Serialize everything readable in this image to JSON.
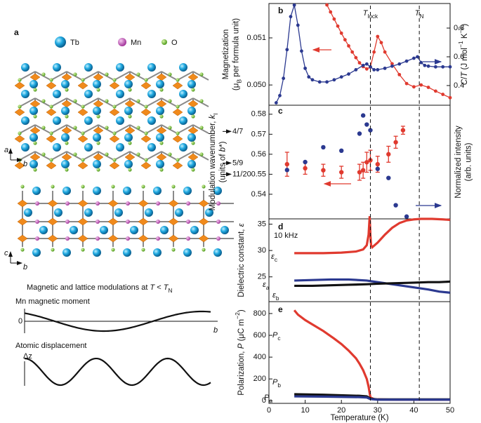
{
  "panel_a": {
    "label": "a",
    "legend": [
      "Tb",
      "Mn",
      "O"
    ],
    "axes": [
      "a",
      "b",
      "c",
      "b"
    ],
    "caption": [
      "Magnetic and lattice modulations at ",
      {
        "i": "T"
      },
      " < ",
      {
        "i": "T"
      },
      {
        "sub": "N"
      }
    ],
    "moment_label": "Mn magnetic moment",
    "zero": "0",
    "moment_axis": "b",
    "displacement_label": "Atomic displacement",
    "displacement_axis": "Δz"
  },
  "chart_data": [
    {
      "type": "line",
      "panel": "b",
      "xlim": [
        0,
        50
      ],
      "ylim": [
        0.04957,
        0.05173
      ],
      "yticks": [
        {
          "value": 0.05,
          "label": "0.050"
        },
        0.051
      ],
      "y2lim": [
        0.263,
        0.971
      ],
      "y2ticks": [
        0.4,
        0.6,
        0.8
      ],
      "ylabel": [
        [
          "Magnetization"
        ],
        [
          "(μ",
          {
            "sub": "B"
          },
          " per formula unit)"
        ]
      ],
      "y2label": [
        {
          "i": "C"
        },
        "/",
        {
          "i": "T"
        },
        " (J mol",
        {
          "sup": "−1"
        },
        " K",
        {
          "sup": "−2"
        },
        ")"
      ],
      "transitions": [
        {
          "value": 28,
          "label": [
            {
              "i": "T"
            },
            {
              "sub": "lock"
            }
          ]
        },
        {
          "value": 41.5,
          "label": [
            {
              "i": "T"
            },
            {
              "sub": "N"
            }
          ]
        }
      ],
      "series": [
        {
          "color": "#e03a2f",
          "markers": true,
          "x": [
            16,
            17,
            18,
            19,
            20,
            21,
            22,
            23,
            24,
            25,
            26,
            27,
            28,
            29,
            30,
            31,
            32,
            34,
            36,
            38,
            40,
            42,
            44,
            46,
            48,
            50
          ],
          "values": [
            0.0517,
            0.05155,
            0.0514,
            0.05125,
            0.0511,
            0.05096,
            0.05083,
            0.0507,
            0.05058,
            0.05047,
            0.05039,
            0.05034,
            0.05038,
            0.0507,
            0.05103,
            0.0509,
            0.0507,
            0.05045,
            0.05022,
            0.05003,
            0.04996,
            0.05,
            0.04995,
            0.04987,
            0.0498,
            0.04973
          ]
        },
        {
          "color": "#2b3990",
          "markers": true,
          "axis": "y2",
          "x": [
            2,
            3,
            4,
            5,
            6,
            7,
            8,
            9,
            10,
            11,
            12,
            14,
            16,
            18,
            20,
            22,
            24,
            26,
            27,
            28,
            29,
            30,
            32,
            34,
            36,
            38,
            40,
            41,
            42,
            43,
            44,
            46,
            48,
            50
          ],
          "values": [
            0.28,
            0.33,
            0.45,
            0.65,
            0.88,
            0.96,
            0.82,
            0.64,
            0.52,
            0.46,
            0.44,
            0.425,
            0.425,
            0.44,
            0.46,
            0.48,
            0.51,
            0.54,
            0.55,
            0.53,
            0.51,
            0.51,
            0.52,
            0.535,
            0.55,
            0.57,
            0.59,
            0.6,
            0.56,
            0.54,
            0.535,
            0.53,
            0.53,
            0.53
          ]
        }
      ]
    },
    {
      "type": "scatter",
      "panel": "c",
      "xlim": [
        0,
        50
      ],
      "ylim": [
        0.5277,
        0.5845
      ],
      "yticks": [
        0.54,
        0.55,
        0.56,
        0.57,
        0.58
      ],
      "y2lim": [
        0,
        1
      ],
      "ylabel": [
        [
          "Modulation wavenumber, ",
          {
            "i": "k"
          },
          {
            "sub": "l"
          }
        ],
        [
          "(units of ",
          {
            "i": "b"
          },
          "*)"
        ]
      ],
      "y2label": [
        [
          "Normalized intensity"
        ],
        [
          "(arb. units)"
        ]
      ],
      "fractions": [
        {
          "value": 0.5714,
          "label": "4/7"
        },
        {
          "value": 0.5556,
          "label": "5/9"
        },
        {
          "value": 0.55,
          "label": "11/20"
        }
      ],
      "series": [
        {
          "color": "#e03a2f",
          "x": [
            5,
            10,
            15,
            20,
            25,
            26,
            27,
            28,
            30,
            33,
            35,
            37
          ],
          "values": [
            0.555,
            0.553,
            0.552,
            0.551,
            0.551,
            0.552,
            0.556,
            0.557,
            0.555,
            0.56,
            0.566,
            0.572
          ],
          "errors": [
            0.006,
            0.003,
            0.003,
            0.003,
            0.004,
            0.004,
            0.005,
            0.005,
            0.004,
            0.004,
            0.003,
            0.002
          ]
        },
        {
          "color": "#2b3990",
          "axis": "y2",
          "x": [
            5,
            10,
            15,
            20,
            25,
            26,
            27,
            28,
            30,
            33,
            35,
            38
          ],
          "values": [
            0.43,
            0.5,
            0.63,
            0.6,
            0.75,
            0.91,
            0.83,
            0.78,
            0.44,
            0.36,
            0.12,
            0.02
          ]
        }
      ]
    },
    {
      "type": "line",
      "panel": "d",
      "xlim": [
        0,
        50
      ],
      "ylim": [
        20.3,
        36
      ],
      "yticks": [
        25,
        30,
        35
      ],
      "ylabel": [
        "Dielectric constant, ",
        {
          "i": "ε"
        }
      ],
      "labels": [
        {
          "text": [
            "10 kHz"
          ],
          "color": "#111111"
        },
        {
          "text": [
            {
              "i": "ε"
            },
            {
              "sub": "c"
            }
          ],
          "color": "#e03a2f"
        },
        {
          "text": [
            {
              "i": "ε"
            },
            {
              "sub": "a"
            }
          ],
          "color": "#2b3990"
        },
        {
          "text": [
            {
              "i": "ε"
            },
            {
              "sub": "b"
            }
          ],
          "color": "#111111"
        }
      ],
      "series": [
        {
          "color": "#e03a2f",
          "x": [
            7,
            10,
            15,
            20,
            24,
            26,
            27,
            27.5,
            27.8,
            28,
            28.2,
            28.5,
            29,
            30,
            32,
            34,
            36,
            38,
            40,
            42,
            45,
            48,
            50
          ],
          "values": [
            29.5,
            29.5,
            29.5,
            29.6,
            29.8,
            30.2,
            31,
            33,
            36.5,
            33,
            31,
            30.6,
            30.9,
            31.5,
            33,
            34.3,
            35.2,
            35.7,
            35.9,
            36,
            36,
            35.9,
            35.8
          ]
        },
        {
          "color": "#2b3990",
          "x": [
            7,
            12,
            17,
            22,
            27,
            30,
            35,
            40,
            44,
            47,
            50
          ],
          "values": [
            24.3,
            24.4,
            24.5,
            24.5,
            24.3,
            24,
            23.5,
            23,
            22.6,
            22.2,
            22
          ]
        },
        {
          "color": "#111111",
          "x": [
            7,
            12,
            17,
            22,
            27,
            30,
            35,
            40,
            44,
            47,
            50
          ],
          "values": [
            23.3,
            23.3,
            23.4,
            23.5,
            23.6,
            23.7,
            23.8,
            23.9,
            24,
            24,
            24.1
          ]
        }
      ]
    },
    {
      "type": "line",
      "panel": "e",
      "xlim": [
        0,
        50
      ],
      "ylim": [
        -24,
        909
      ],
      "yticks": [
        0,
        200,
        400,
        600,
        800
      ],
      "xticks": [
        0,
        10,
        20,
        30,
        40,
        50
      ],
      "xlabel": "Temperature (K)",
      "ylabel": [
        "Polarization, ",
        {
          "i": "P"
        },
        " (μC m",
        {
          "sup": "−2"
        },
        ")"
      ],
      "labels": [
        {
          "text": [
            {
              "i": "P"
            },
            {
              "sub": "c"
            }
          ],
          "color": "#e03a2f"
        },
        {
          "text": [
            {
              "i": "P"
            },
            {
              "sub": "b"
            }
          ],
          "color": "#111111"
        },
        {
          "text": [
            {
              "i": "P"
            },
            {
              "sub": "a"
            }
          ],
          "color": "#2b3990"
        }
      ],
      "series": [
        {
          "color": "#e03a2f",
          "x": [
            7,
            8,
            10,
            12,
            15,
            18,
            20,
            22,
            24,
            25,
            26,
            27,
            27.5,
            28,
            29,
            30,
            35,
            40,
            45,
            50
          ],
          "values": [
            830,
            790,
            740,
            700,
            640,
            570,
            520,
            460,
            390,
            340,
            280,
            200,
            130,
            30,
            15,
            12,
            10,
            10,
            10,
            10
          ]
        },
        {
          "color": "#111111",
          "x": [
            7,
            15,
            25,
            27,
            28,
            30,
            40,
            50
          ],
          "values": [
            60,
            55,
            45,
            40,
            20,
            12,
            12,
            12
          ]
        },
        {
          "color": "#2b3990",
          "x": [
            7,
            15,
            25,
            27,
            28,
            30,
            40,
            50
          ],
          "values": [
            40,
            38,
            33,
            30,
            15,
            10,
            10,
            10
          ]
        }
      ]
    }
  ]
}
